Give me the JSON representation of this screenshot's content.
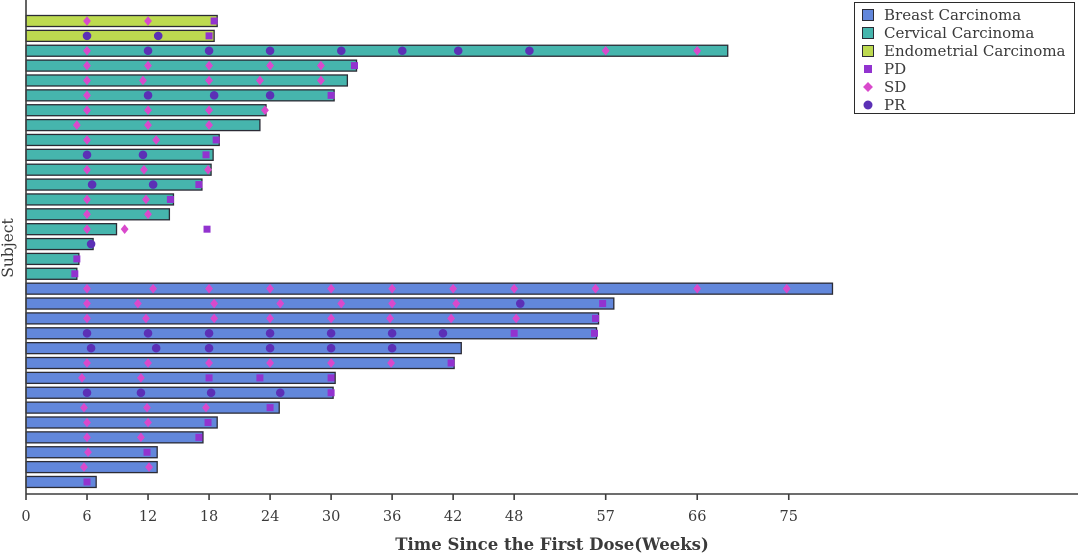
{
  "chart_data": {
    "type": "bar",
    "variant": "swimmer-plot",
    "orientation": "horizontal",
    "title": "",
    "xlabel": "Time Since the First Dose(Weeks)",
    "ylabel": "Subject",
    "x_ticks": [
      0,
      6,
      12,
      18,
      24,
      30,
      36,
      42,
      48,
      57,
      66,
      75
    ],
    "x_domain": [
      0,
      102
    ],
    "grid": false,
    "legend_position": "top-right",
    "axis_color": "#3d3d3d",
    "text_color": "#3a3a3a",
    "bar_outline_color": "#2b2b35",
    "groups": [
      {
        "name": "Breast Carcinoma",
        "color": "#6287db"
      },
      {
        "name": "Cervical Carcinoma",
        "color": "#46b5ad"
      },
      {
        "name": "Endometrial Carcinoma",
        "color": "#bdda50"
      }
    ],
    "event_types": [
      {
        "name": "PD",
        "marker": "square",
        "color": "#9233cf"
      },
      {
        "name": "SD",
        "marker": "diamond",
        "color": "#d949cc"
      },
      {
        "name": "PR",
        "marker": "circle",
        "color": "#5b30b6"
      }
    ],
    "subjects": [
      {
        "group": "Endometrial Carcinoma",
        "duration": 18.8,
        "events": {
          "SD": [
            6,
            12
          ],
          "PD": [
            18.5
          ]
        }
      },
      {
        "group": "Endometrial Carcinoma",
        "duration": 18.5,
        "events": {
          "PR": [
            6,
            13
          ],
          "PD": [
            18
          ]
        }
      },
      {
        "group": "Cervical Carcinoma",
        "duration": 69,
        "events": {
          "SD": [
            6,
            57,
            66
          ],
          "PR": [
            12,
            18,
            24,
            31,
            37,
            42.5,
            49.5
          ]
        }
      },
      {
        "group": "Cervical Carcinoma",
        "duration": 32.5,
        "events": {
          "SD": [
            6,
            12,
            18,
            24,
            29
          ],
          "PD": [
            32.3
          ]
        }
      },
      {
        "group": "Cervical Carcinoma",
        "duration": 31.6,
        "events": {
          "SD": [
            6,
            11.5,
            18,
            23,
            29
          ]
        }
      },
      {
        "group": "Cervical Carcinoma",
        "duration": 30.3,
        "events": {
          "SD": [
            6
          ],
          "PR": [
            12,
            18.5,
            24
          ],
          "PD": [
            30
          ]
        }
      },
      {
        "group": "Cervical Carcinoma",
        "duration": 23.6,
        "events": {
          "SD": [
            6,
            12,
            18,
            23.5
          ]
        }
      },
      {
        "group": "Cervical Carcinoma",
        "duration": 23.0,
        "events": {
          "SD": [
            5,
            12,
            18
          ]
        }
      },
      {
        "group": "Cervical Carcinoma",
        "duration": 19.0,
        "events": {
          "SD": [
            6,
            12.8
          ],
          "PD": [
            18.7
          ]
        }
      },
      {
        "group": "Cervical Carcinoma",
        "duration": 18.4,
        "events": {
          "PR": [
            6,
            11.5
          ],
          "PD": [
            17.7
          ]
        }
      },
      {
        "group": "Cervical Carcinoma",
        "duration": 18.2,
        "events": {
          "SD": [
            6,
            11.6,
            17.9
          ]
        }
      },
      {
        "group": "Cervical Carcinoma",
        "duration": 17.3,
        "events": {
          "PR": [
            6.5,
            12.5
          ],
          "PD": [
            17
          ]
        }
      },
      {
        "group": "Cervical Carcinoma",
        "duration": 14.5,
        "events": {
          "SD": [
            6,
            11.8
          ],
          "PD": [
            14.2
          ]
        }
      },
      {
        "group": "Cervical Carcinoma",
        "duration": 14.1,
        "events": {
          "SD": [
            6,
            12
          ]
        }
      },
      {
        "group": "Cervical Carcinoma",
        "duration": 8.9,
        "events": {
          "SD": [
            6,
            9.7
          ],
          "PD": [
            17.8
          ]
        }
      },
      {
        "group": "Cervical Carcinoma",
        "duration": 6.6,
        "events": {
          "PR": [
            6.4
          ]
        }
      },
      {
        "group": "Cervical Carcinoma",
        "duration": 5.2,
        "events": {
          "PD": [
            5
          ]
        }
      },
      {
        "group": "Cervical Carcinoma",
        "duration": 5.0,
        "events": {
          "PD": [
            4.8
          ]
        }
      },
      {
        "group": "Breast Carcinoma",
        "duration": 79.3,
        "events": {
          "SD": [
            6,
            12.5,
            18,
            24,
            30,
            36,
            42,
            48,
            56,
            66,
            74.8
          ]
        }
      },
      {
        "group": "Breast Carcinoma",
        "duration": 57.8,
        "events": {
          "SD": [
            6,
            11,
            18.5,
            25,
            31,
            36,
            42.3
          ],
          "PR": [
            48.6
          ],
          "PD": [
            56.7
          ]
        }
      },
      {
        "group": "Breast Carcinoma",
        "duration": 56.3,
        "events": {
          "SD": [
            6,
            11.8,
            18.5,
            24,
            30,
            35.8,
            41.8,
            48.2
          ],
          "PD": [
            56
          ]
        }
      },
      {
        "group": "Breast Carcinoma",
        "duration": 56.1,
        "events": {
          "PR": [
            6,
            12,
            18,
            24,
            30,
            36,
            41
          ],
          "PD": [
            48,
            55.9
          ]
        }
      },
      {
        "group": "Breast Carcinoma",
        "duration": 42.8,
        "events": {
          "PR": [
            6.4,
            12.8,
            18,
            24,
            30,
            36
          ]
        }
      },
      {
        "group": "Breast Carcinoma",
        "duration": 42.1,
        "events": {
          "SD": [
            6,
            12,
            18,
            24,
            30,
            35.9
          ],
          "PD": [
            41.8
          ]
        }
      },
      {
        "group": "Breast Carcinoma",
        "duration": 30.4,
        "events": {
          "SD": [
            5.5,
            11.3
          ],
          "PD": [
            18,
            23,
            30
          ]
        }
      },
      {
        "group": "Breast Carcinoma",
        "duration": 30.2,
        "events": {
          "PR": [
            6,
            11.3,
            18.2,
            25
          ],
          "PD": [
            30
          ]
        }
      },
      {
        "group": "Breast Carcinoma",
        "duration": 24.9,
        "events": {
          "SD": [
            5.7,
            11.9,
            17.7
          ],
          "PD": [
            24
          ]
        }
      },
      {
        "group": "Breast Carcinoma",
        "duration": 18.8,
        "events": {
          "SD": [
            6,
            12
          ],
          "PD": [
            17.9
          ]
        }
      },
      {
        "group": "Breast Carcinoma",
        "duration": 17.4,
        "events": {
          "SD": [
            6,
            11.3
          ],
          "PD": [
            17
          ]
        }
      },
      {
        "group": "Breast Carcinoma",
        "duration": 12.9,
        "events": {
          "SD": [
            6.1
          ],
          "PD": [
            11.9
          ]
        }
      },
      {
        "group": "Breast Carcinoma",
        "duration": 12.9,
        "events": {
          "SD": [
            5.7,
            12.1
          ]
        }
      },
      {
        "group": "Breast Carcinoma",
        "duration": 6.9,
        "events": {
          "PD": [
            6
          ]
        }
      }
    ]
  }
}
